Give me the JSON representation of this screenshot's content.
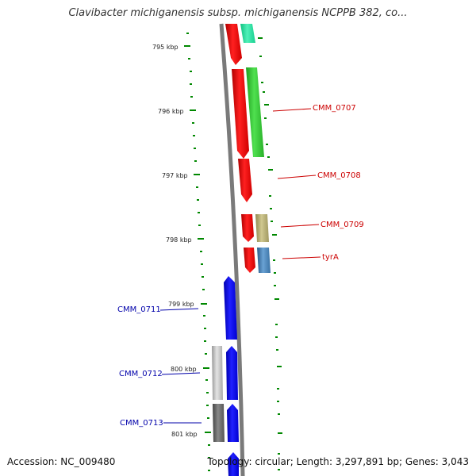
{
  "title": "Clavibacter michiganensis subsp. michiganensis NCPPB 382, co...",
  "footer": {
    "accession": "Accession: NC_009480",
    "summary": "Topology: circular; Length: 3,297,891 bp; Genes: 3,043"
  },
  "ticks": [
    "795 kbp",
    "796 kbp",
    "797 kbp",
    "798 kbp",
    "799 kbp",
    "800 kbp",
    "801 kbp"
  ],
  "genes_right": [
    "CMM_0707",
    "CMM_0708",
    "CMM_0709",
    "tyrA"
  ],
  "genes_left": [
    "CMM_0711",
    "CMM_0712",
    "CMM_0713"
  ],
  "colors": {
    "forward_cds": "#ff0000",
    "reverse_cds": "#0000ff",
    "rna_green": "#2ecc40",
    "teal": "#20e0a0",
    "olive": "#b8b070",
    "steelblue": "#4682b4",
    "grey_light": "#c8c8c8",
    "grey_dark": "#666666",
    "tick_marks": "#008800",
    "backbone": "#808080"
  }
}
